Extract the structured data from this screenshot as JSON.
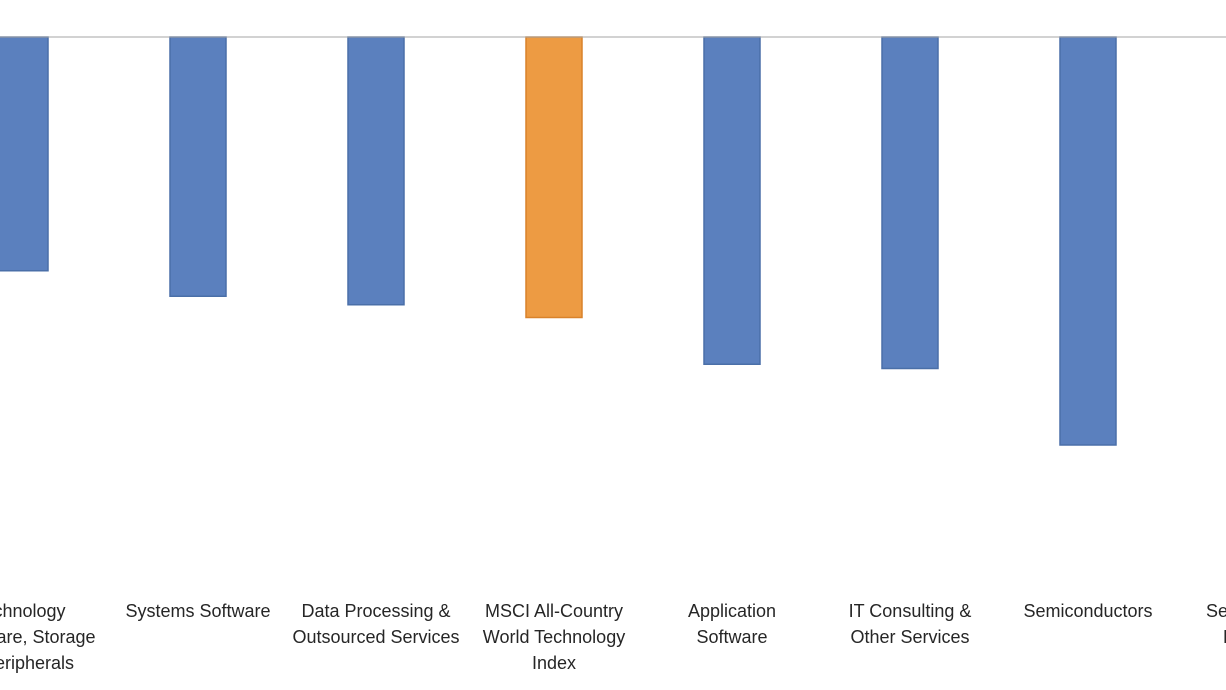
{
  "chart_data": {
    "type": "bar",
    "orientation": "vertical",
    "title": "",
    "xlabel": "",
    "ylabel": "",
    "grid": false,
    "legend": "none",
    "ylim": [
      -70,
      0
    ],
    "categories": [
      [
        "Technology",
        "Hardware, Storage",
        "& Peripherals"
      ],
      [
        "Systems Software"
      ],
      [
        "Data Processing &",
        "Outsourced Services"
      ],
      [
        "MSCI All-Country",
        "World Technology",
        "Index"
      ],
      [
        "Application",
        "Software"
      ],
      [
        "IT Consulting &",
        "Other Services"
      ],
      [
        "Semiconductors"
      ],
      [
        "Semiconductor",
        "Equipment"
      ]
    ],
    "values": [
      -27.5,
      -30.5,
      -31.5,
      -33.0,
      -38.5,
      -39.0,
      -48.0,
      null
    ],
    "highlight_index": 3,
    "colors": {
      "bar": "#5b80be",
      "bar_stroke": "#4a6fa8",
      "highlight": "#ed9b43",
      "highlight_stroke": "#d9822b",
      "axis": "#a6a6a6",
      "text": "#262626"
    }
  }
}
